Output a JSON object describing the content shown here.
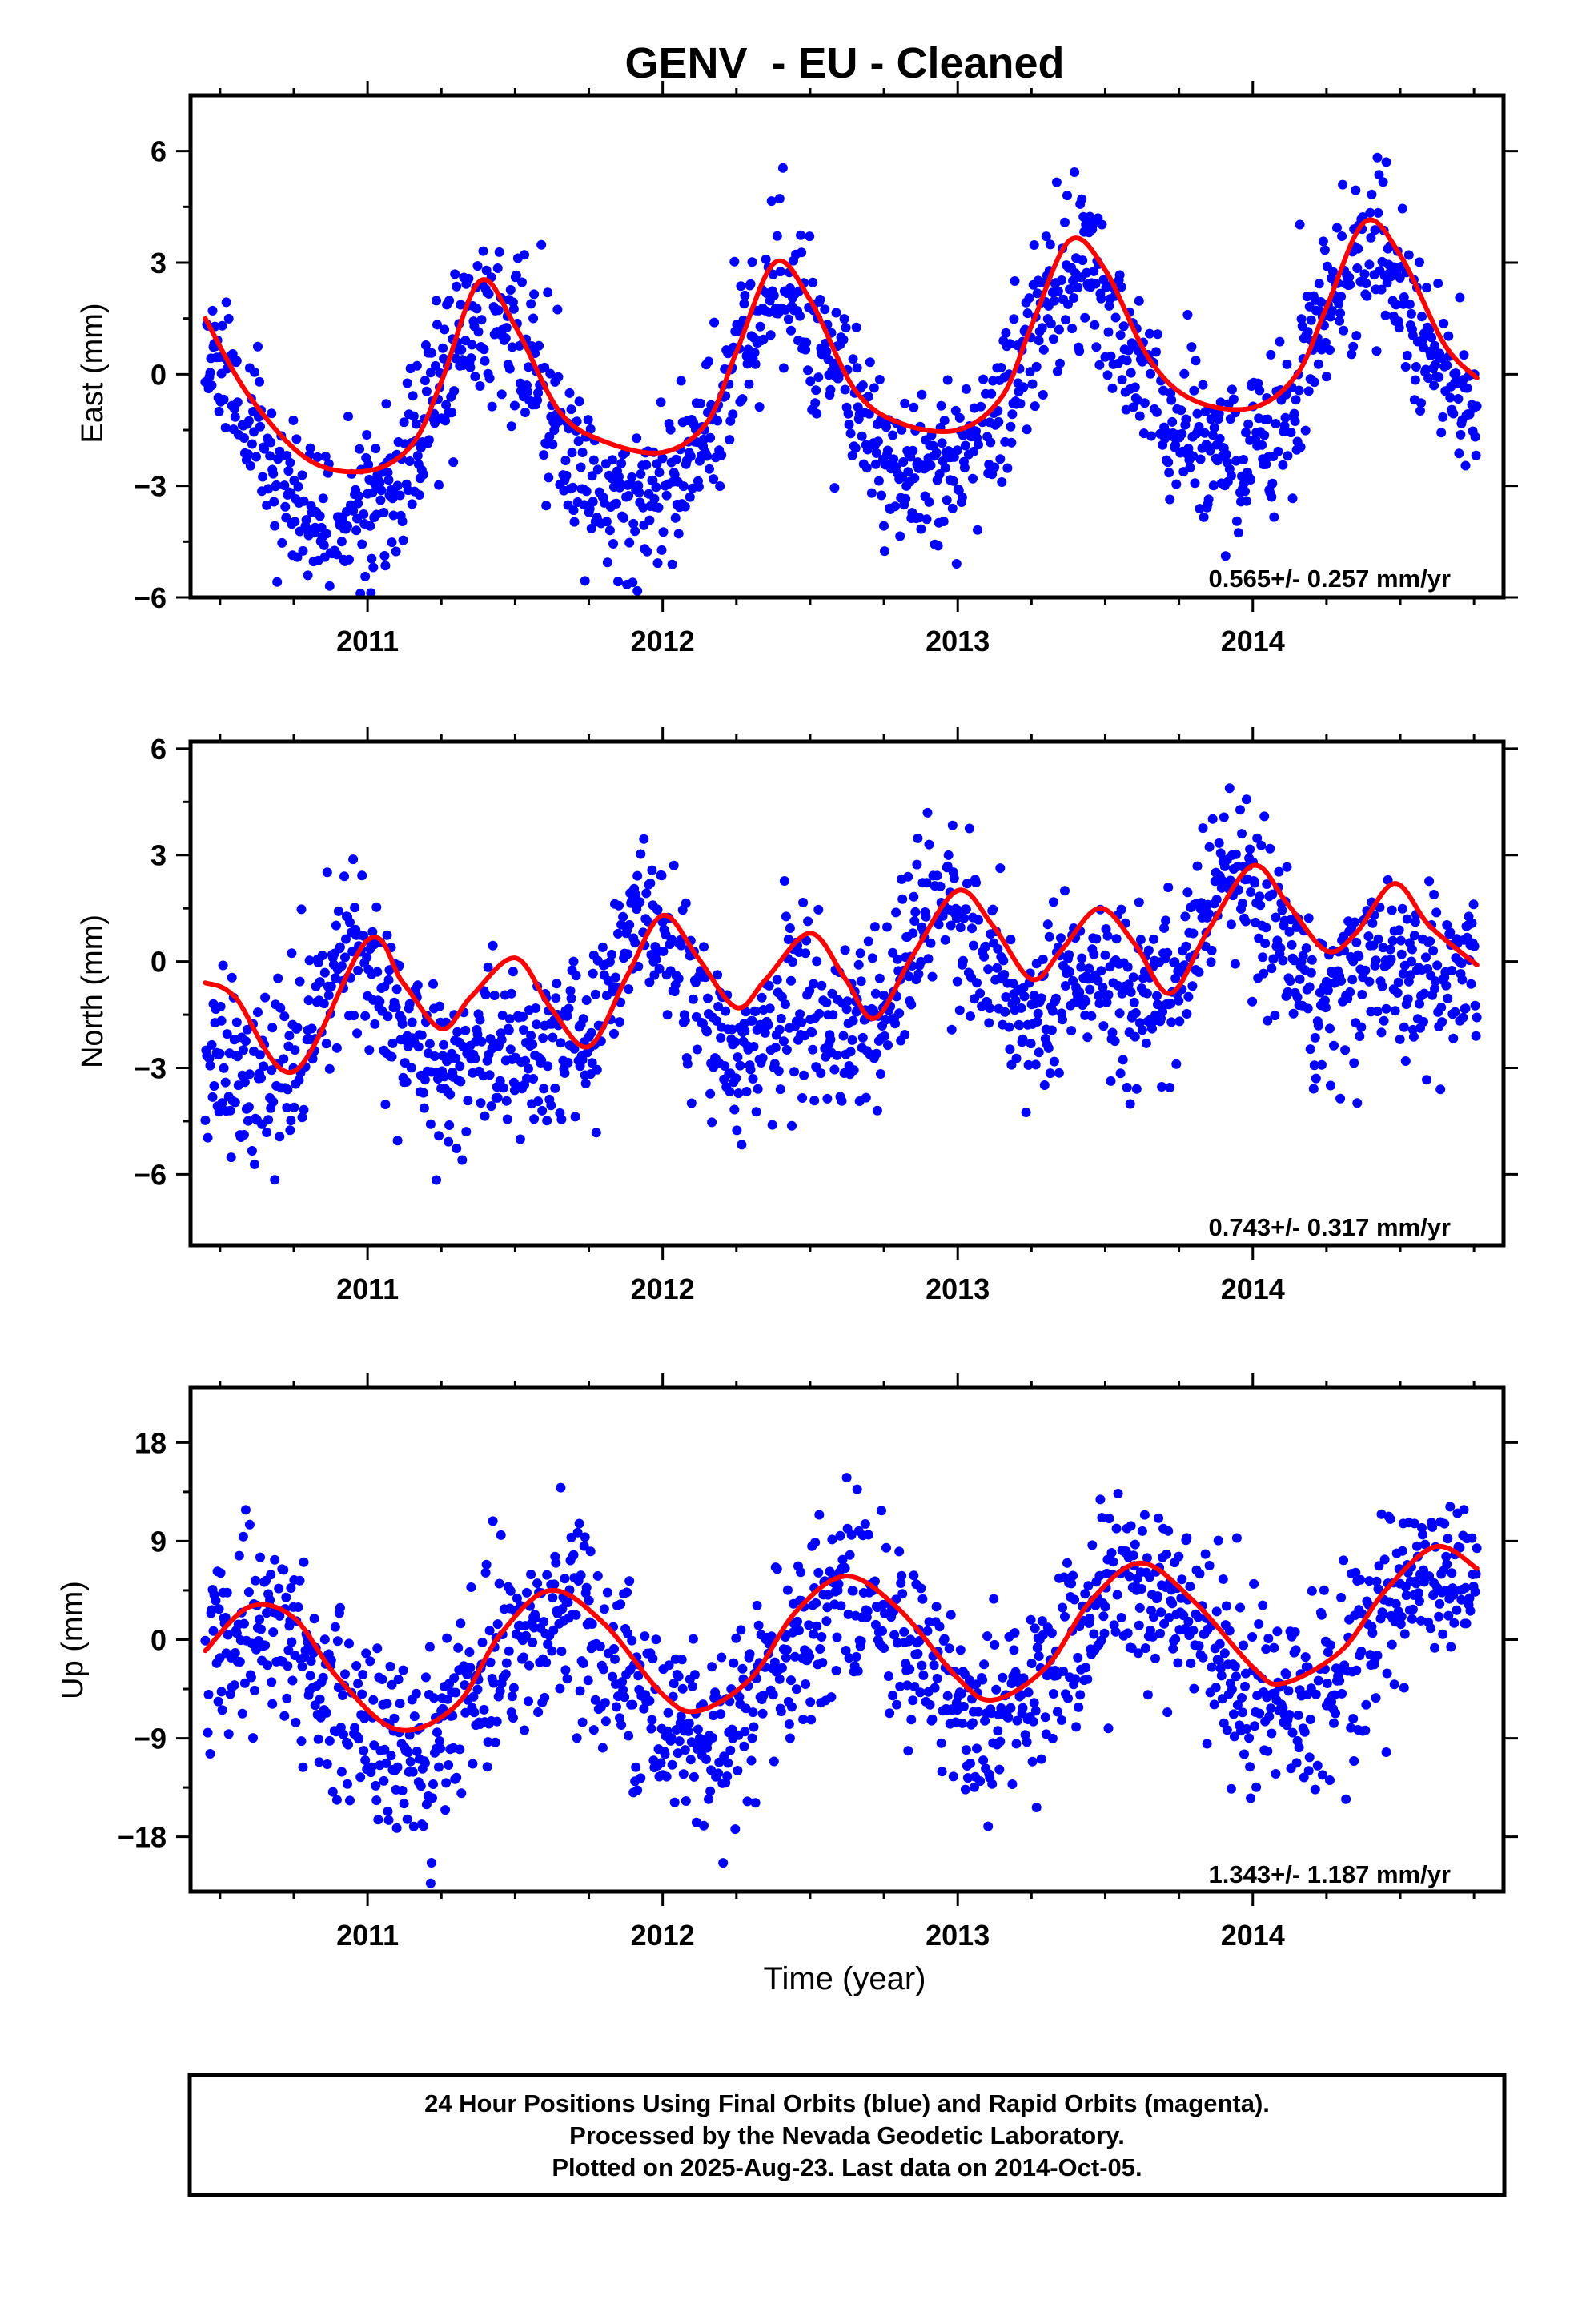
{
  "title": "GENV  - EU - Cleaned",
  "colors": {
    "points": "#0000ff",
    "fit": "#ff0000",
    "frame": "#000000"
  },
  "chart_data": [
    {
      "type": "scatter",
      "ylabel": "East (mm)",
      "ylim": [
        -6,
        7.5
      ],
      "yticks": [
        -6,
        -3,
        0,
        3,
        6
      ],
      "ytick_labels": [
        "−6",
        "−3",
        "0",
        "3",
        "6"
      ],
      "xlim": [
        2010.4,
        2014.85
      ],
      "xticks": [
        2011,
        2012,
        2013,
        2014
      ],
      "xtick_labels": [
        "2011",
        "2012",
        "2013",
        "2014"
      ],
      "rate": "0.565+/- 0.257 mm/yr",
      "series": [
        {
          "name": "Final Orbits",
          "color": "#0000ff",
          "kind": "points",
          "model": {
            "t0": 2010.45,
            "t1": 2014.76,
            "offset": -0.8,
            "trend": 0.565,
            "amp": 2.6,
            "phase_peak": 0.4,
            "amp2": 0.4,
            "noise": 1.1,
            "seed": 11
          }
        },
        {
          "name": "Fit",
          "color": "#ff0000",
          "kind": "line",
          "x": [
            2010.45,
            2010.6,
            2010.8,
            2011.0,
            2011.15,
            2011.25,
            2011.38,
            2011.5,
            2011.65,
            2011.8,
            2012.0,
            2012.15,
            2012.25,
            2012.38,
            2012.5,
            2012.65,
            2012.8,
            2013.0,
            2013.15,
            2013.25,
            2013.38,
            2013.5,
            2013.65,
            2013.8,
            2014.0,
            2014.15,
            2014.25,
            2014.38,
            2014.5,
            2014.65,
            2014.76
          ],
          "y": [
            1.5,
            -0.6,
            -2.3,
            -2.6,
            -1.9,
            -0.2,
            2.5,
            1.3,
            -1.0,
            -1.8,
            -2.1,
            -1.3,
            0.6,
            3.0,
            2.0,
            -0.4,
            -1.3,
            -1.5,
            -0.6,
            1.3,
            3.6,
            2.8,
            0.4,
            -0.7,
            -0.9,
            0.0,
            1.8,
            4.1,
            3.2,
            0.8,
            -0.1
          ]
        }
      ]
    },
    {
      "type": "scatter",
      "ylabel": "North (mm)",
      "ylim": [
        -8,
        6.2
      ],
      "yticks": [
        -6,
        -3,
        0,
        3,
        6
      ],
      "ytick_labels": [
        "−6",
        "−3",
        "0",
        "3",
        "6"
      ],
      "xlim": [
        2010.4,
        2014.85
      ],
      "xticks": [
        2011,
        2012,
        2013,
        2014
      ],
      "xtick_labels": [
        "2011",
        "2012",
        "2013",
        "2014"
      ],
      "rate": "0.743+/- 0.317 mm/yr",
      "series": [
        {
          "name": "Final Orbits",
          "color": "#0000ff",
          "kind": "points",
          "model": {
            "t0": 2010.45,
            "t1": 2014.76,
            "offset": -1.0,
            "trend": 0.743,
            "amp": 1.4,
            "phase_peak": 0.95,
            "amp2": 1.0,
            "noise": 1.2,
            "seed": 23
          }
        },
        {
          "name": "Fit",
          "color": "#ff0000",
          "kind": "line",
          "x": [
            2010.45,
            2010.55,
            2010.75,
            2011.0,
            2011.12,
            2011.25,
            2011.35,
            2011.5,
            2011.62,
            2011.75,
            2011.88,
            2012.0,
            2012.12,
            2012.25,
            2012.35,
            2012.5,
            2012.62,
            2012.72,
            2012.85,
            2013.0,
            2013.12,
            2013.25,
            2013.35,
            2013.48,
            2013.6,
            2013.72,
            2013.85,
            2014.0,
            2014.12,
            2014.25,
            2014.35,
            2014.48,
            2014.6,
            2014.76
          ],
          "y": [
            -0.6,
            -1.0,
            -3.1,
            0.6,
            -0.6,
            -1.9,
            -1.0,
            0.1,
            -1.3,
            -2.4,
            -0.4,
            1.3,
            0.1,
            -1.3,
            -0.5,
            0.8,
            -0.5,
            -1.6,
            0.2,
            2.0,
            1.0,
            -0.5,
            0.3,
            1.5,
            0.5,
            -0.9,
            0.9,
            2.7,
            1.6,
            0.3,
            0.8,
            2.2,
            1.0,
            -0.1
          ]
        }
      ]
    },
    {
      "type": "scatter",
      "ylabel": "Up (mm)",
      "ylim": [
        -23,
        23
      ],
      "yticks": [
        -18,
        -9,
        0,
        9,
        18
      ],
      "ytick_labels": [
        "−18",
        "−9",
        "0",
        "9",
        "18"
      ],
      "xlim": [
        2010.4,
        2014.85
      ],
      "xticks": [
        2011,
        2012,
        2013,
        2014
      ],
      "xtick_labels": [
        "2011",
        "2012",
        "2013",
        "2014"
      ],
      "xlabel": "Time (year)",
      "rate": "1.343+/- 1.187 mm/yr",
      "series": [
        {
          "name": "Final Orbits",
          "color": "#0000ff",
          "kind": "points",
          "model": {
            "t0": 2010.45,
            "t1": 2014.76,
            "offset": -2.5,
            "trend": 1.343,
            "amp": 6.0,
            "phase_peak": 0.62,
            "amp2": 0.0,
            "noise": 4.2,
            "seed": 37
          }
        },
        {
          "name": "Fit",
          "color": "#ff0000",
          "kind": "line",
          "x": [
            2010.45,
            2010.6,
            2010.75,
            2010.9,
            2011.1,
            2011.3,
            2011.45,
            2011.62,
            2011.8,
            2012.0,
            2012.12,
            2012.3,
            2012.45,
            2012.62,
            2012.8,
            2013.0,
            2013.12,
            2013.3,
            2013.45,
            2013.62,
            2013.8,
            2014.0,
            2014.1,
            2014.3,
            2014.45,
            2014.62,
            2014.76
          ],
          "y": [
            -1.0,
            3.0,
            2.0,
            -3.5,
            -8.2,
            -6.0,
            0.5,
            4.5,
            1.5,
            -5.0,
            -6.5,
            -3.5,
            2.5,
            5.8,
            2.8,
            -3.5,
            -5.5,
            -2.5,
            3.5,
            7.0,
            3.5,
            -2.5,
            -4.0,
            -1.0,
            4.5,
            8.5,
            6.5
          ]
        }
      ]
    }
  ],
  "caption": {
    "line1": "24 Hour Positions Using Final Orbits (blue) and Rapid Orbits (magenta).",
    "line2": "Processed by the Nevada Geodetic Laboratory.",
    "line3": "Plotted on 2025-Aug-23. Last data on 2014-Oct-05."
  }
}
